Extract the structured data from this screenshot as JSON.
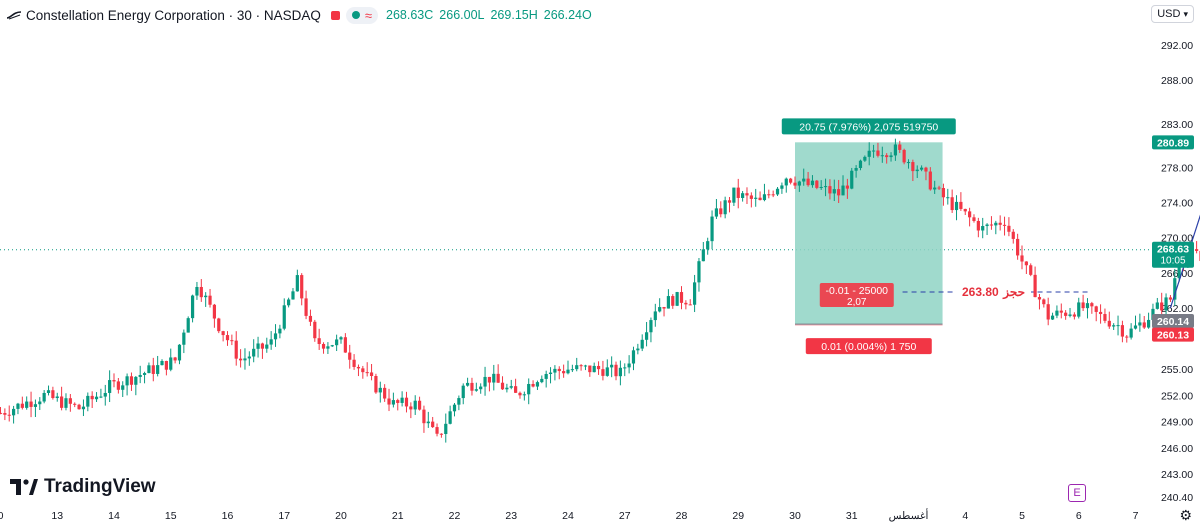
{
  "header": {
    "title": "Constellation Energy Corporation · 30 · NASDAQ",
    "close": "268.63",
    "close_key": "C",
    "low": "266.00",
    "low_key": "L",
    "high": "269.15",
    "high_key": "H",
    "open": "266.24",
    "open_key": "O",
    "pill_icon": "wave-icon"
  },
  "currency": "USD",
  "brand": "TradingView",
  "events_badge": "E",
  "colors": {
    "up": "#089981",
    "down": "#f23645",
    "target_fill": "#8fd4c4",
    "stop_fill": "#f7b3b9",
    "arrow": "#2a3fa8",
    "order": "#e5303c"
  },
  "chart_data": {
    "type": "candlestick",
    "ylim": [
      239,
      295
    ],
    "y_ticks": [
      "292.00",
      "288.00",
      "283.00",
      "278.00",
      "274.00",
      "270.00",
      "266.00",
      "262.00",
      "255.00",
      "252.00",
      "249.00",
      "246.00",
      "243.00",
      "240.40"
    ],
    "y_tick_values": [
      292,
      288,
      283,
      278,
      274,
      270,
      266,
      262,
      255,
      252,
      249,
      246,
      243,
      240.4
    ],
    "x_ticks": [
      "0",
      "13",
      "14",
      "15",
      "16",
      "17",
      "20",
      "21",
      "22",
      "23",
      "24",
      "27",
      "28",
      "29",
      "30",
      "31",
      "أغسطس",
      "4",
      "5",
      "6",
      "7"
    ],
    "bars_per_day": 13,
    "anchors": [
      [
        0,
        250
      ],
      [
        10,
        252
      ],
      [
        18,
        250.5
      ],
      [
        25,
        253
      ],
      [
        35,
        255
      ],
      [
        40,
        256
      ],
      [
        45,
        265
      ],
      [
        50,
        260
      ],
      [
        55,
        256
      ],
      [
        62,
        258
      ],
      [
        68,
        265
      ],
      [
        72,
        258
      ],
      [
        78,
        258
      ],
      [
        84,
        254
      ],
      [
        90,
        251
      ],
      [
        95,
        251
      ],
      [
        100,
        247
      ],
      [
        106,
        253
      ],
      [
        112,
        254
      ],
      [
        118,
        252
      ],
      [
        124,
        254.5
      ],
      [
        130,
        255
      ],
      [
        138,
        255
      ],
      [
        142,
        254.5
      ],
      [
        145,
        257
      ],
      [
        150,
        262
      ],
      [
        154,
        263
      ],
      [
        158,
        263
      ],
      [
        163,
        272
      ],
      [
        168,
        275
      ],
      [
        174,
        274
      ],
      [
        180,
        277
      ],
      [
        185,
        276
      ],
      [
        192,
        275
      ],
      [
        200,
        280
      ],
      [
        205,
        280
      ],
      [
        210,
        278
      ],
      [
        215,
        275
      ],
      [
        220,
        273
      ],
      [
        225,
        271
      ],
      [
        230,
        272
      ],
      [
        236,
        265
      ],
      [
        240,
        261
      ],
      [
        248,
        262
      ],
      [
        252,
        261
      ],
      [
        256,
        260
      ],
      [
        258,
        259
      ],
      [
        262,
        260.5
      ],
      [
        265,
        262
      ],
      [
        268,
        263
      ],
      [
        270,
        268
      ],
      [
        274,
        268
      ],
      [
        280,
        264
      ],
      [
        286,
        264
      ],
      [
        290,
        262
      ],
      [
        294,
        263
      ],
      [
        298,
        265
      ],
      [
        301,
        268
      ]
    ],
    "price_line": "268.63",
    "price_line_time": "10:05",
    "position": {
      "entry": "260.14",
      "target": "280.89",
      "stop": "260.13",
      "target_label": "20.75 (7.976%) 2,075 519750",
      "stop_label": "0.01 (0.004%) 1 750",
      "center_label_1": "-0.01 - 25000",
      "center_label_2": "2,07"
    },
    "order": {
      "price": "263.80",
      "label": "حجز"
    }
  }
}
